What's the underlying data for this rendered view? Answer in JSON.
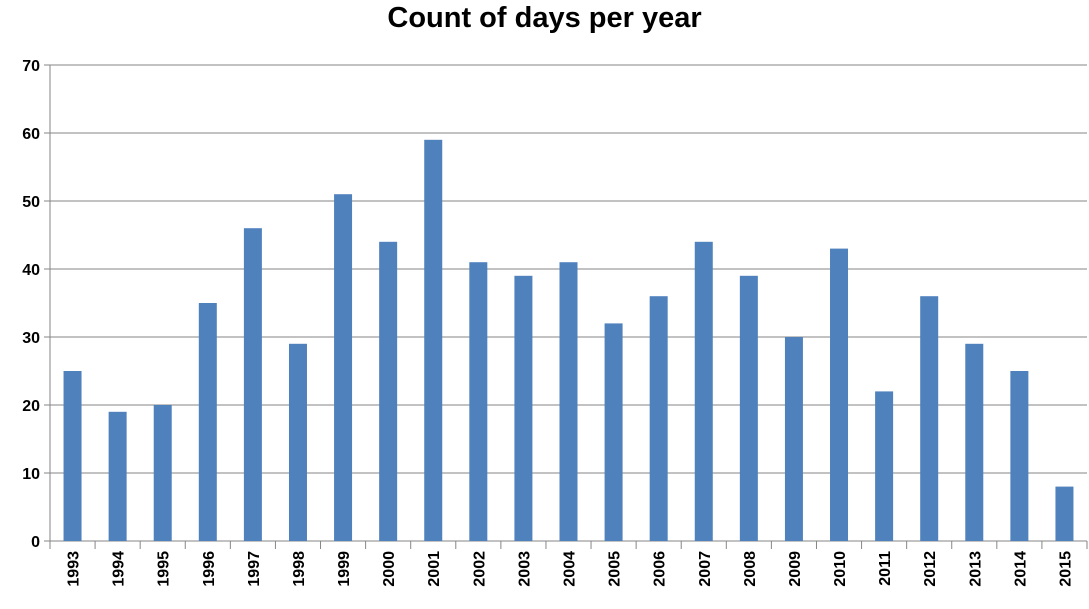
{
  "chart_data": {
    "type": "bar",
    "title": "Count of days per year",
    "xlabel": "",
    "ylabel": "",
    "categories": [
      "1993",
      "1994",
      "1995",
      "1996",
      "1997",
      "1998",
      "1999",
      "2000",
      "2001",
      "2002",
      "2003",
      "2004",
      "2005",
      "2006",
      "2007",
      "2008",
      "2009",
      "2010",
      "2011",
      "2012",
      "2013",
      "2014",
      "2015"
    ],
    "values": [
      25,
      19,
      20,
      35,
      46,
      29,
      51,
      44,
      59,
      41,
      39,
      41,
      32,
      36,
      44,
      39,
      30,
      43,
      22,
      36,
      29,
      25,
      8
    ],
    "ylim": [
      0,
      70
    ],
    "yticks": [
      0,
      10,
      20,
      30,
      40,
      50,
      60,
      70
    ],
    "grid": true,
    "legend": "none",
    "colors": {
      "bar": "#4F81BD",
      "grid": "#868686"
    }
  }
}
